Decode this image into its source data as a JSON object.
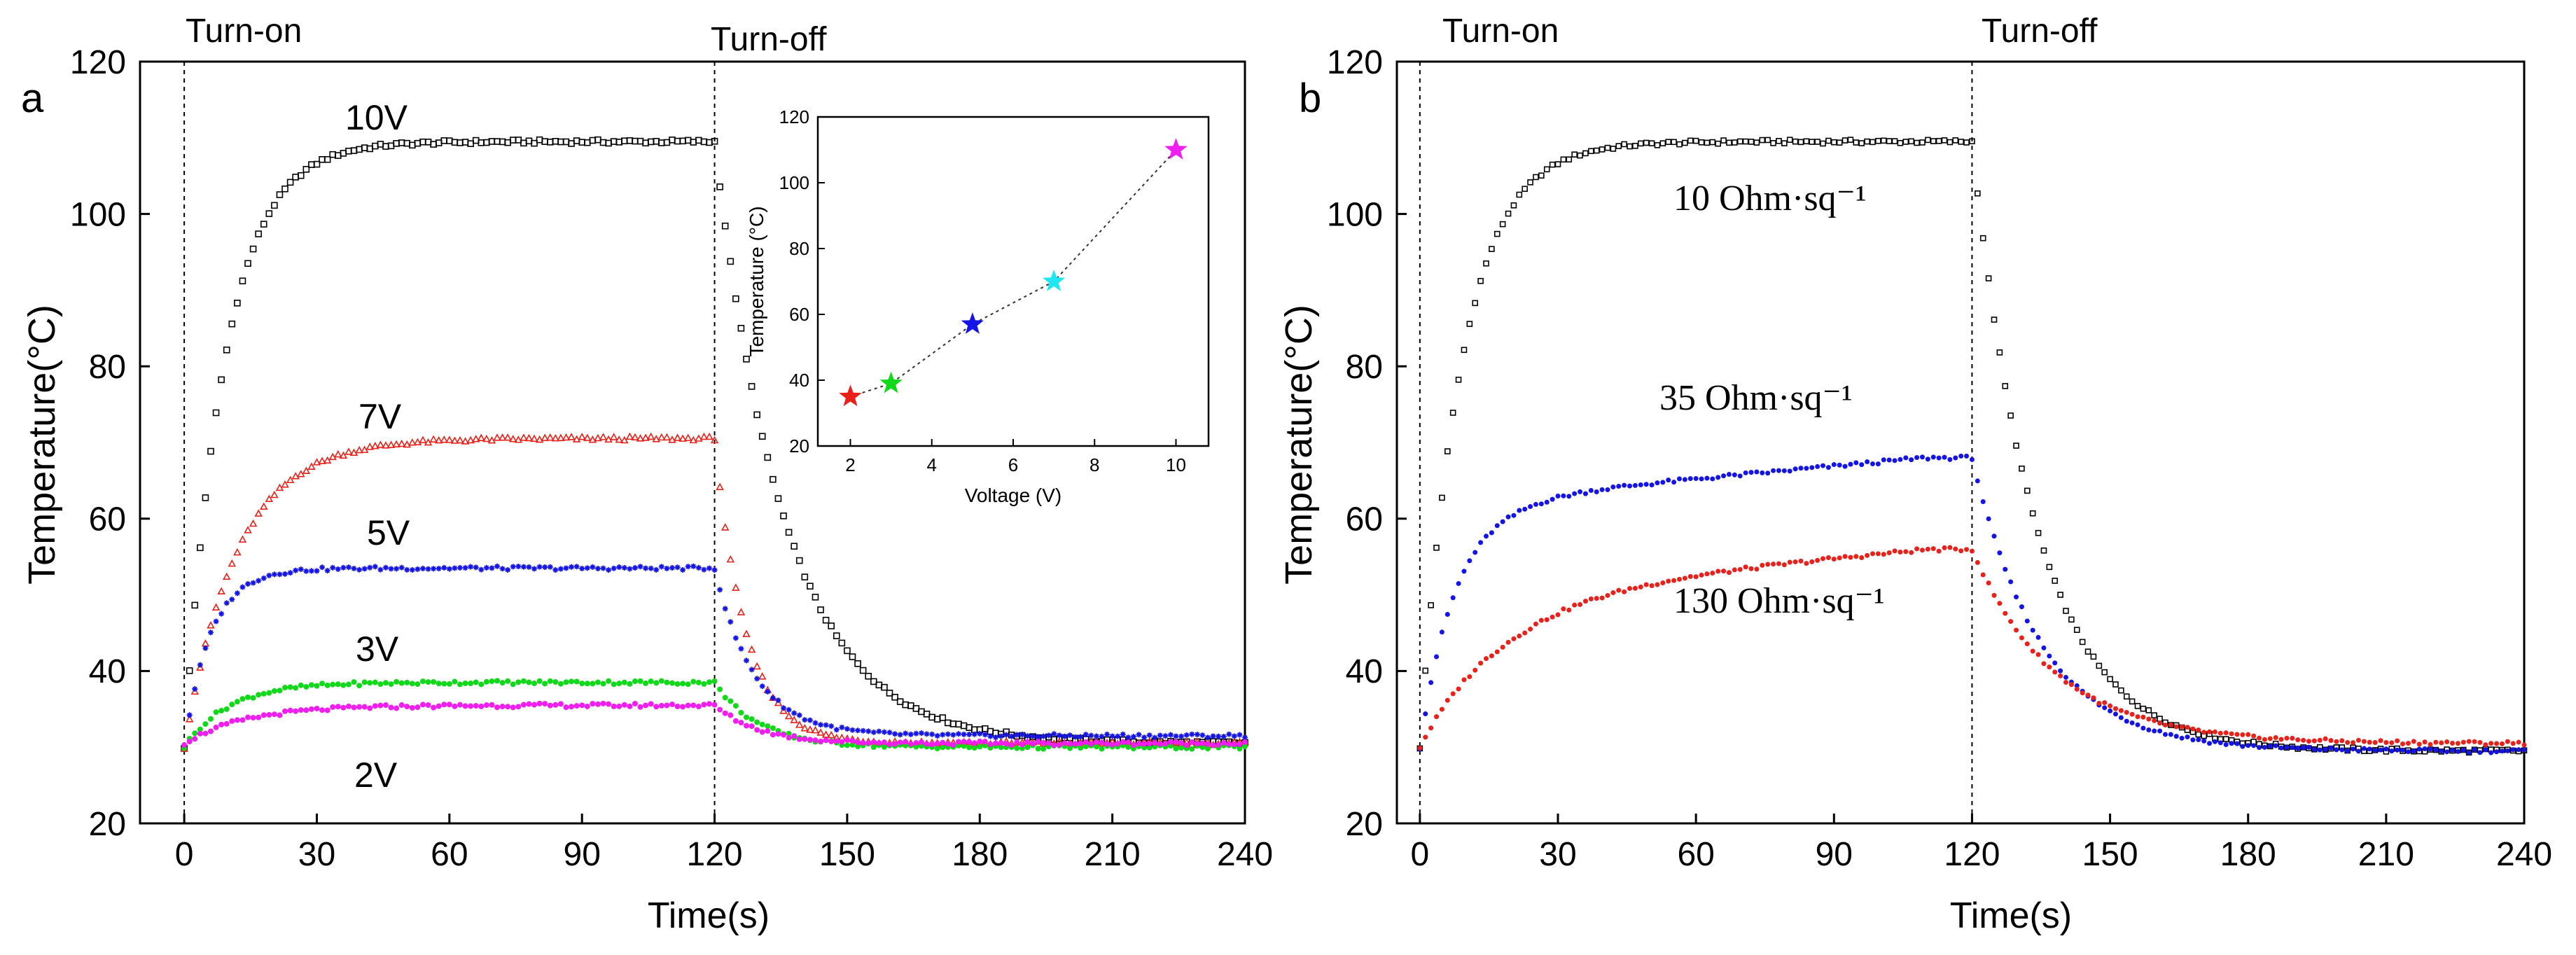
{
  "chart_data": [
    {
      "type": "scatter",
      "panel_label": "a",
      "xlabel": "Time(s)",
      "ylabel": "Temperature(°C)",
      "xlim": [
        -10,
        240
      ],
      "ylim": [
        20,
        120
      ],
      "xticks": [
        0,
        30,
        60,
        90,
        120,
        150,
        180,
        210,
        240
      ],
      "yticks": [
        20,
        40,
        60,
        80,
        100,
        120
      ],
      "events": [
        {
          "label": "Turn-on",
          "x": 0
        },
        {
          "label": "Turn-off",
          "x": 120
        }
      ],
      "series": [
        {
          "name": "10V",
          "color": "#000000",
          "marker": "square",
          "start": 30,
          "plateau": 109.5,
          "tau_on": 9,
          "final": 30.5,
          "tau_off": 16
        },
        {
          "name": "7V",
          "color": "#e8211a",
          "marker": "triangle",
          "start": 30,
          "plateau": 70.5,
          "tau_on": 12,
          "final": 30.5,
          "tau_off": 7
        },
        {
          "name": "5V",
          "color": "#1414e6",
          "marker": "star",
          "start": 30,
          "plateau": 53.5,
          "tau_on": 6,
          "final": 31.5,
          "tau_off": 9
        },
        {
          "name": "3V",
          "color": "#11d81a",
          "marker": "dot",
          "start": 30,
          "plateau": 38.5,
          "tau_on": 10,
          "final": 30.0,
          "tau_off": 10
        },
        {
          "name": "2V",
          "color": "#f01ef0",
          "marker": "dot",
          "start": 30.5,
          "plateau": 35.5,
          "tau_on": 14,
          "final": 30.5,
          "tau_off": 10
        }
      ],
      "inset": {
        "type": "scatter",
        "xlabel": "Voltage (V)",
        "ylabel": "Temperature (°C)",
        "xlim": [
          1.2,
          10.8
        ],
        "ylim": [
          20,
          120
        ],
        "xticks": [
          2,
          4,
          6,
          8,
          10
        ],
        "yticks": [
          20,
          40,
          60,
          80,
          100,
          120
        ],
        "points": [
          {
            "x": 2,
            "y": 35,
            "color": "#e8211a"
          },
          {
            "x": 3,
            "y": 39,
            "color": "#11d81a"
          },
          {
            "x": 5,
            "y": 57,
            "color": "#1414e6"
          },
          {
            "x": 7,
            "y": 70,
            "color": "#1fe6f0"
          },
          {
            "x": 10,
            "y": 110,
            "color": "#f01ef0"
          }
        ]
      }
    },
    {
      "type": "scatter",
      "panel_label": "b",
      "xlabel": "Time(s)",
      "ylabel": "Temperature(°C)",
      "xlim": [
        -5,
        240
      ],
      "ylim": [
        20,
        120
      ],
      "xticks": [
        0,
        30,
        60,
        90,
        120,
        150,
        180,
        210,
        240
      ],
      "yticks": [
        20,
        40,
        60,
        80,
        100,
        120
      ],
      "events": [
        {
          "label": "Turn-on",
          "x": 0
        },
        {
          "label": "Turn-off",
          "x": 120
        }
      ],
      "series": [
        {
          "name": "10 Ohm·sq⁻¹",
          "color": "#000000",
          "marker": "square",
          "start": 30,
          "plateau": 109.5,
          "tau_on": 9,
          "final": 29.5,
          "tau_off": 14
        },
        {
          "name": "35 Ohm·sq⁻¹",
          "color": "#1414e6",
          "marker": "dot",
          "start": 30,
          "plateau": 63,
          "tau_on": 8,
          "drift_to": 68,
          "final": 29.5,
          "tau_off": 15
        },
        {
          "name": "130 Ohm·sq⁻¹",
          "color": "#e8211a",
          "marker": "dot",
          "start": 30,
          "plateau": 51,
          "tau_on": 18,
          "drift_to": 56,
          "final": 30.5,
          "tau_off": 18
        }
      ]
    }
  ]
}
